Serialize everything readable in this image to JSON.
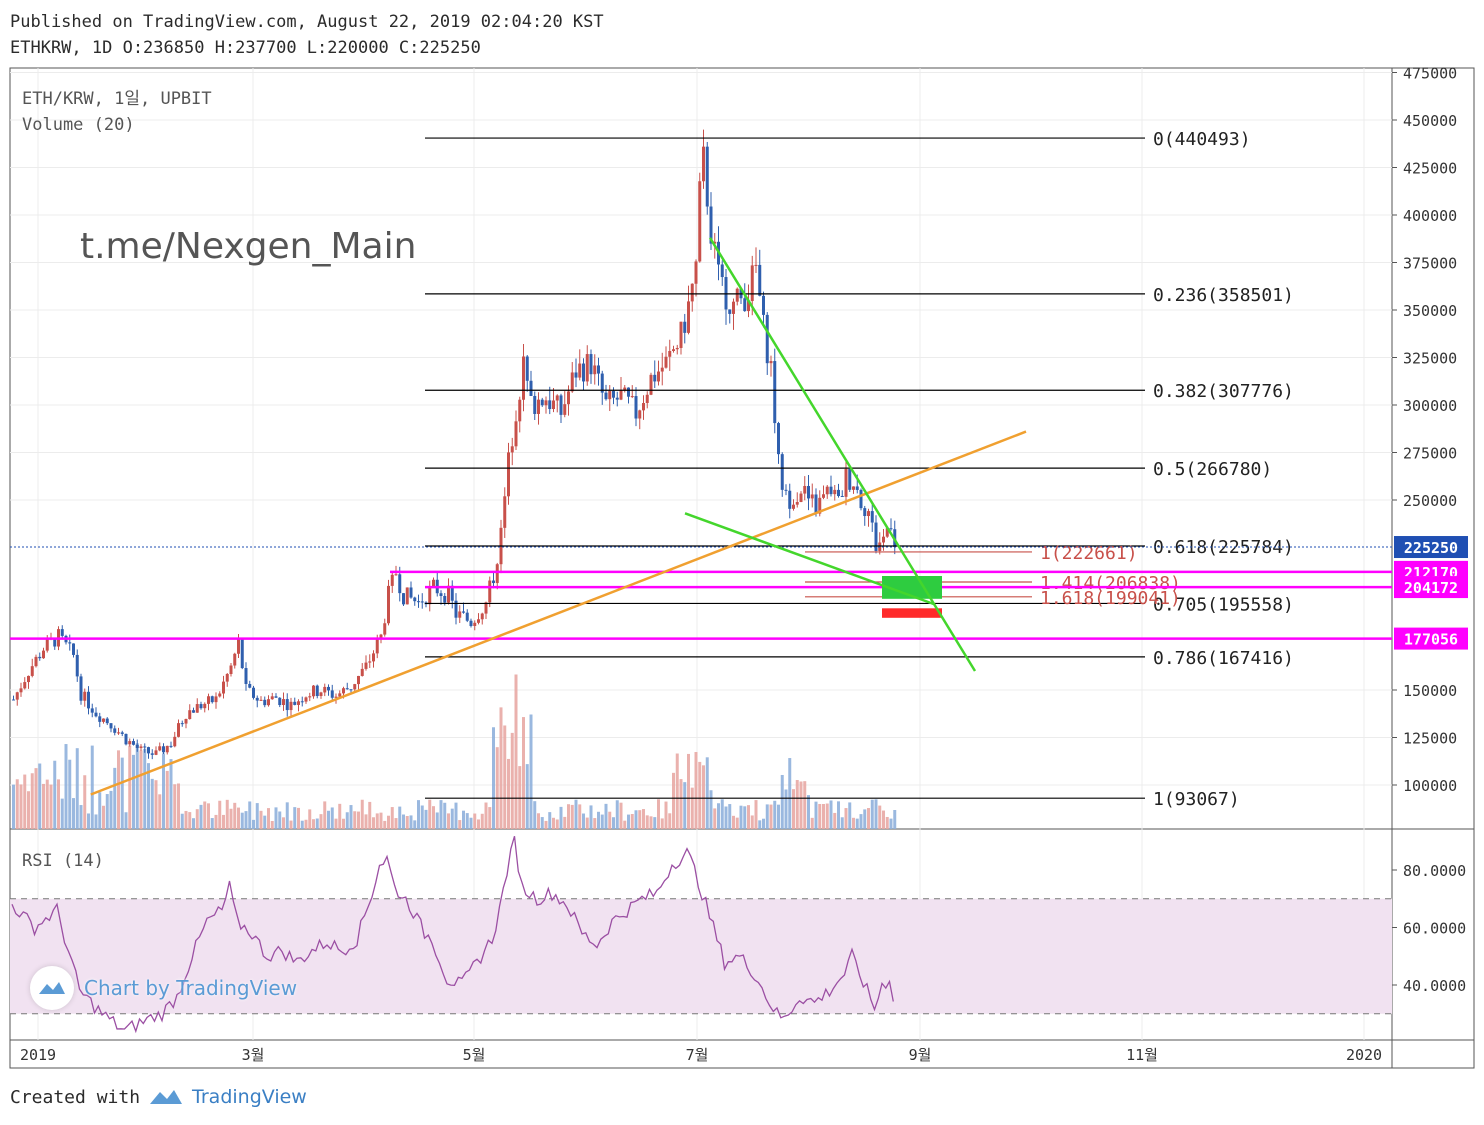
{
  "header": {
    "published": "Published on TradingView.com, August 22, 2019 02:04:20 KST",
    "ohlc": "ETHKRW, 1D O:236850 H:237700 L:220000 C:225250"
  },
  "legend": {
    "symbol": "ETH/KRW, 1일, UPBIT",
    "volume": "Volume (20)",
    "rsi": "RSI (14)"
  },
  "watermark_text": "t.me/Nexgen_Main",
  "chart_by": "Chart by TradingView",
  "footer": {
    "created": "Created with",
    "brand": "TradingView"
  },
  "colors": {
    "up": "#c8504a",
    "down": "#2f5fae",
    "fib": "#000000",
    "ext": "#c8504a",
    "magenta": "#ff00ff",
    "trend_orange": "#f0a030",
    "trend_green": "#44d62c",
    "rsi": "#9b4fa3",
    "rsi_band": "#f1e2f1",
    "price_tag": "#1f4fb3"
  },
  "chart_data": [
    {
      "type": "candlestick",
      "symbol": "ETH/KRW",
      "timeframe": "1일",
      "exchange": "UPBIT",
      "x_tick_labels": [
        "2019",
        "3월",
        "5월",
        "7월",
        "9월",
        "11월",
        "2020"
      ],
      "y_tick_labels": [
        "475000",
        "450000",
        "425000",
        "400000",
        "375000",
        "350000",
        "325000",
        "300000",
        "275000",
        "250000",
        "150000",
        "125000",
        "100000"
      ],
      "ylim": [
        70000,
        475000
      ],
      "last_price": 225250,
      "price_path": [
        [
          0,
          145000
        ],
        [
          4,
          160000
        ],
        [
          8,
          172000
        ],
        [
          12,
          178000
        ],
        [
          16,
          168000
        ],
        [
          18,
          148000
        ],
        [
          22,
          138000
        ],
        [
          26,
          132000
        ],
        [
          30,
          124000
        ],
        [
          34,
          118000
        ],
        [
          38,
          116000
        ],
        [
          42,
          122000
        ],
        [
          46,
          138000
        ],
        [
          50,
          142000
        ],
        [
          54,
          145000
        ],
        [
          58,
          162000
        ],
        [
          60,
          175000
        ],
        [
          62,
          150000
        ],
        [
          66,
          144000
        ],
        [
          70,
          146000
        ],
        [
          74,
          142000
        ],
        [
          78,
          148000
        ],
        [
          82,
          150000
        ],
        [
          86,
          147000
        ],
        [
          90,
          152000
        ],
        [
          94,
          162000
        ],
        [
          98,
          178000
        ],
        [
          100,
          200000
        ],
        [
          102,
          212000
        ],
        [
          104,
          200000
        ],
        [
          108,
          196000
        ],
        [
          112,
          204000
        ],
        [
          116,
          200000
        ],
        [
          118,
          190000
        ],
        [
          122,
          186000
        ],
        [
          126,
          196000
        ],
        [
          128,
          210000
        ],
        [
          130,
          232000
        ],
        [
          132,
          270000
        ],
        [
          134,
          298000
        ],
        [
          136,
          320000
        ],
        [
          138,
          300000
        ],
        [
          142,
          304000
        ],
        [
          146,
          296000
        ],
        [
          150,
          318000
        ],
        [
          154,
          322000
        ],
        [
          158,
          300000
        ],
        [
          162,
          304000
        ],
        [
          166,
          296000
        ],
        [
          170,
          314000
        ],
        [
          174,
          322000
        ],
        [
          178,
          336000
        ],
        [
          180,
          352000
        ],
        [
          182,
          372000
        ],
        [
          183,
          410000
        ],
        [
          184,
          428000
        ],
        [
          186,
          392000
        ],
        [
          188,
          366000
        ],
        [
          192,
          352000
        ],
        [
          196,
          360000
        ],
        [
          198,
          372000
        ],
        [
          200,
          340000
        ],
        [
          202,
          320000
        ],
        [
          204,
          268000
        ],
        [
          206,
          250000
        ],
        [
          210,
          256000
        ],
        [
          214,
          246000
        ],
        [
          218,
          256000
        ],
        [
          220,
          248000
        ],
        [
          222,
          262000
        ],
        [
          224,
          260000
        ],
        [
          226,
          250000
        ],
        [
          228,
          244000
        ],
        [
          230,
          226000
        ],
        [
          232,
          230000
        ],
        [
          234,
          240000
        ],
        [
          235,
          225250
        ]
      ],
      "volume_bars": 236
    },
    {
      "type": "annotations",
      "fibonacci_retracement": [
        {
          "level": "0",
          "price": 440493
        },
        {
          "level": "0.236",
          "price": 358501
        },
        {
          "level": "0.382",
          "price": 307776
        },
        {
          "level": "0.5",
          "price": 266780
        },
        {
          "level": "0.618",
          "price": 225784
        },
        {
          "level": "0.705",
          "price": 195558
        },
        {
          "level": "0.786",
          "price": 167416
        },
        {
          "level": "1",
          "price": 93067
        }
      ],
      "fibonacci_extension": [
        {
          "level": "1",
          "price": 222661
        },
        {
          "level": "1.414",
          "price": 206838
        },
        {
          "level": "1.618",
          "price": 199041
        }
      ],
      "horizontal_levels": [
        212170,
        204172,
        177056
      ],
      "price_tags": [
        {
          "label": "225250",
          "price": 225250,
          "color": "#1f4fb3"
        },
        {
          "label": "212170",
          "price": 212170,
          "color": "#ff00ff"
        },
        {
          "label": "204172",
          "price": 204172,
          "color": "#ff00ff"
        },
        {
          "label": "177056",
          "price": 177056,
          "color": "#ff00ff"
        }
      ],
      "zones": [
        {
          "kind": "target",
          "color": "#2ecc40",
          "price_top": 210000,
          "price_bottom": 198000
        },
        {
          "kind": "stop",
          "color": "#ff2a2a",
          "price_top": 193000,
          "price_bottom": 188000
        }
      ]
    },
    {
      "type": "line",
      "name": "RSI (14)",
      "ylim": [
        25,
        95
      ],
      "y_tick_labels": [
        "80.0000",
        "60.0000",
        "40.0000"
      ],
      "band": [
        30,
        70
      ],
      "values": [
        [
          0,
          68
        ],
        [
          6,
          60
        ],
        [
          12,
          66
        ],
        [
          18,
          38
        ],
        [
          24,
          30
        ],
        [
          30,
          24
        ],
        [
          36,
          28
        ],
        [
          40,
          30
        ],
        [
          44,
          36
        ],
        [
          48,
          50
        ],
        [
          52,
          62
        ],
        [
          56,
          66
        ],
        [
          58,
          74
        ],
        [
          60,
          62
        ],
        [
          64,
          58
        ],
        [
          68,
          50
        ],
        [
          72,
          52
        ],
        [
          76,
          48
        ],
        [
          80,
          52
        ],
        [
          84,
          55
        ],
        [
          88,
          52
        ],
        [
          92,
          56
        ],
        [
          96,
          72
        ],
        [
          98,
          82
        ],
        [
          100,
          84
        ],
        [
          102,
          74
        ],
        [
          106,
          68
        ],
        [
          110,
          58
        ],
        [
          112,
          56
        ],
        [
          116,
          42
        ],
        [
          120,
          40
        ],
        [
          124,
          48
        ],
        [
          128,
          56
        ],
        [
          130,
          66
        ],
        [
          132,
          80
        ],
        [
          134,
          90
        ],
        [
          136,
          74
        ],
        [
          140,
          70
        ],
        [
          144,
          72
        ],
        [
          148,
          68
        ],
        [
          152,
          58
        ],
        [
          156,
          54
        ],
        [
          160,
          62
        ],
        [
          164,
          66
        ],
        [
          168,
          70
        ],
        [
          172,
          72
        ],
        [
          176,
          82
        ],
        [
          180,
          86
        ],
        [
          182,
          80
        ],
        [
          186,
          64
        ],
        [
          190,
          48
        ],
        [
          194,
          50
        ],
        [
          198,
          44
        ],
        [
          202,
          34
        ],
        [
          204,
          30
        ],
        [
          206,
          28
        ],
        [
          210,
          36
        ],
        [
          214,
          34
        ],
        [
          218,
          38
        ],
        [
          222,
          44
        ],
        [
          224,
          50
        ],
        [
          226,
          44
        ],
        [
          228,
          38
        ],
        [
          230,
          32
        ],
        [
          232,
          40
        ],
        [
          234,
          42
        ],
        [
          235,
          36
        ]
      ]
    }
  ]
}
